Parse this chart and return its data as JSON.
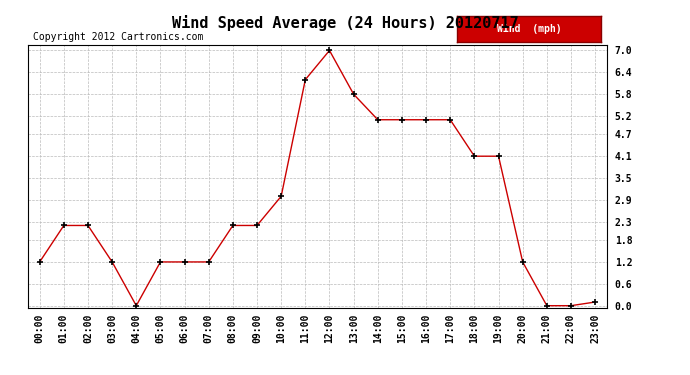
{
  "title": "Wind Speed Average (24 Hours) 20120717",
  "copyright_text": "Copyright 2012 Cartronics.com",
  "legend_label": "Wind  (mph)",
  "legend_bg": "#cc0000",
  "legend_fg": "#ffffff",
  "x_labels": [
    "00:00",
    "01:00",
    "02:00",
    "03:00",
    "04:00",
    "05:00",
    "06:00",
    "07:00",
    "08:00",
    "09:00",
    "10:00",
    "11:00",
    "12:00",
    "13:00",
    "14:00",
    "15:00",
    "16:00",
    "17:00",
    "18:00",
    "19:00",
    "20:00",
    "21:00",
    "22:00",
    "23:00"
  ],
  "y_values": [
    1.2,
    2.2,
    2.2,
    1.2,
    0.0,
    1.2,
    1.2,
    1.2,
    2.2,
    2.2,
    3.0,
    6.2,
    7.0,
    5.8,
    5.1,
    5.1,
    5.1,
    5.1,
    4.1,
    4.1,
    1.2,
    0.0,
    0.0,
    0.1
  ],
  "y_ticks": [
    0.0,
    0.6,
    1.2,
    1.8,
    2.3,
    2.9,
    3.5,
    4.1,
    4.7,
    5.2,
    5.8,
    6.4,
    7.0
  ],
  "ylim": [
    0.0,
    7.0
  ],
  "line_color": "#cc0000",
  "marker": "+",
  "marker_color": "#000000",
  "marker_size": 5,
  "bg_color": "#ffffff",
  "grid_color": "#bbbbbb",
  "title_fontsize": 11,
  "axis_fontsize": 7,
  "copyright_fontsize": 7
}
